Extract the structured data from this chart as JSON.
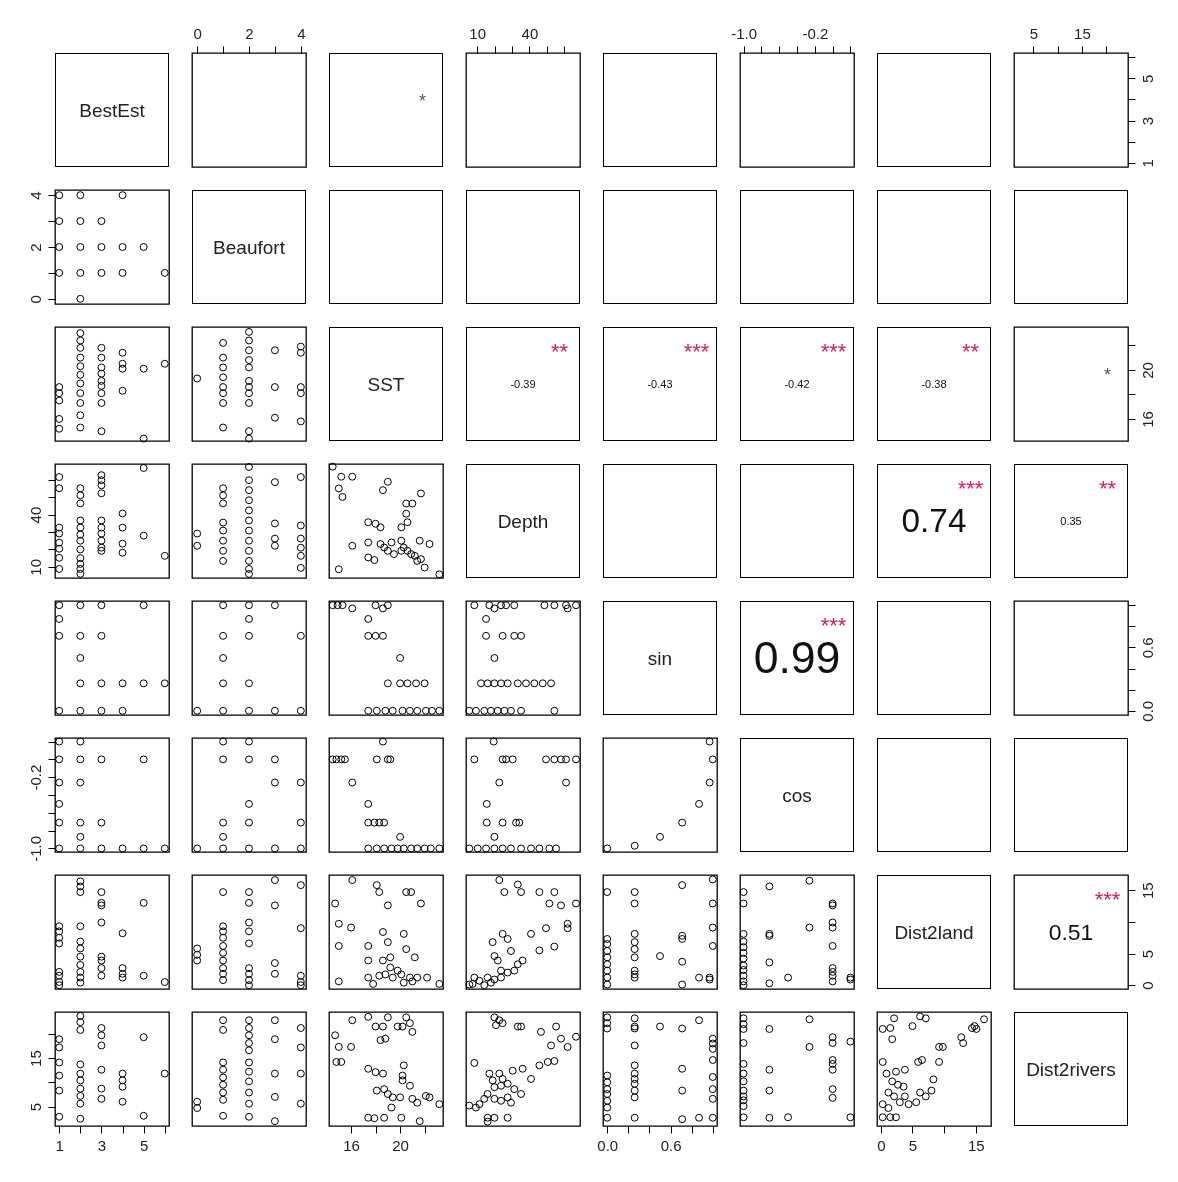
{
  "chart_data": [
    {
      "type": "other",
      "annotations": [
        "BestEst",
        "*",
        "Beaufort",
        "SST",
        "-0.39",
        "**",
        "-0.43",
        "***",
        "-0.42",
        "***",
        "-0.38",
        "**",
        "*",
        "Depth",
        "0.74",
        "***",
        "0.35",
        "**",
        "sin",
        "0.99",
        "***",
        "cos",
        "Dist2land",
        "0.51",
        "***",
        "Dist2rivers"
      ]
    },
    {
      "type": "scatter",
      "xlim": [
        -0.2,
        4.2
      ],
      "xticks": [
        0,
        {
          "value": 1,
          "label": null
        },
        2,
        {
          "value": 3,
          "label": null
        },
        4
      ],
      "ylim": [
        0.8,
        6.2
      ],
      "tick_labels": "x"
    },
    {
      "type": "scatter",
      "xlim": [
        3.6,
        69
      ],
      "xticks": [
        10,
        {
          "value": 20,
          "label": null
        },
        {
          "value": 30,
          "label": null
        },
        40,
        {
          "value": 50,
          "label": null
        },
        {
          "value": 60,
          "label": null
        }
      ],
      "ylim": [
        0.8,
        6.2
      ],
      "tick_labels": "x"
    },
    {
      "type": "scatter",
      "xlim": [
        -1.04,
        0.24
      ],
      "xticks": [
        {
          "value": -1,
          "label": "-1.0"
        },
        {
          "value": -0.8,
          "label": null
        },
        {
          "value": -0.6,
          "label": null
        },
        {
          "value": -0.4,
          "label": null
        },
        {
          "value": -0.2,
          "label": "-0.2"
        },
        {
          "value": 0,
          "label": null
        },
        {
          "value": 0.2,
          "label": null
        }
      ],
      "ylim": [
        0.8,
        6.2
      ],
      "tick_labels": "x"
    },
    {
      "type": "scatter",
      "xlim": [
        1,
        24.5
      ],
      "xticks": [
        5,
        {
          "value": 10,
          "label": null
        },
        15,
        {
          "value": 20,
          "label": null
        }
      ],
      "ylim": [
        0.8,
        6.2
      ],
      "yticks": [
        1,
        {
          "value": 2,
          "label": null
        },
        3,
        {
          "value": 4,
          "label": null
        },
        5,
        {
          "value": 6,
          "label": null
        }
      ]
    },
    {
      "type": "scatter",
      "marker": "circle",
      "color": "#000000",
      "xlim": [
        0.8,
        6.2
      ],
      "ylim": [
        -0.2,
        4.2
      ],
      "yticks": [
        0,
        {
          "value": 1,
          "label": null
        },
        2,
        {
          "value": 3,
          "label": null
        },
        4
      ],
      "tick_labels": "y",
      "x": [
        1,
        2,
        4,
        1,
        2,
        3,
        1,
        2,
        3,
        4,
        5,
        1,
        2,
        3,
        4,
        6,
        2
      ],
      "values": [
        4,
        4,
        4,
        3,
        3,
        3,
        2,
        2,
        2,
        2,
        2,
        1,
        1,
        1,
        1,
        1,
        0
      ]
    },
    {
      "type": "scatter",
      "marker": "circle",
      "color": "#000000",
      "xlim": [
        0.8,
        6.2
      ],
      "ylim": [
        14.2,
        23.5
      ],
      "tick_labels": false,
      "x": [
        1,
        1,
        1,
        1,
        1,
        2,
        2,
        2,
        2,
        2,
        2,
        2,
        2,
        2,
        2,
        2,
        3,
        3,
        3,
        3,
        3,
        3,
        3,
        3,
        3,
        4,
        4,
        4,
        4,
        5,
        5,
        6
      ],
      "values": [
        18.6,
        18.1,
        17.5,
        16.0,
        15.2,
        23.0,
        22.4,
        21.8,
        21.0,
        20.3,
        19.6,
        18.9,
        18.1,
        17.3,
        16.3,
        15.3,
        21.8,
        21.0,
        20.2,
        19.7,
        19.1,
        18.7,
        18.1,
        17.3,
        15.0,
        21.4,
        20.5,
        20.1,
        18.3,
        20.1,
        14.4,
        20.5
      ]
    },
    {
      "type": "scatter",
      "marker": "circle",
      "color": "#000000",
      "xlim": [
        -0.2,
        4.2
      ],
      "ylim": [
        14.2,
        23.5
      ],
      "tick_labels": false,
      "x": [
        0,
        1,
        1,
        1,
        1,
        1,
        1,
        1,
        1,
        2,
        2,
        2,
        2,
        2,
        2,
        2,
        2,
        2,
        2,
        2,
        3,
        3,
        3,
        4,
        4,
        4,
        4,
        4
      ],
      "values": [
        19.3,
        22.2,
        21.0,
        20.2,
        19.4,
        18.6,
        18.1,
        17.3,
        15.3,
        23.1,
        22.4,
        21.6,
        20.8,
        20.2,
        19.1,
        18.6,
        18.1,
        17.3,
        15.0,
        14.4,
        21.6,
        18.6,
        16.1,
        21.9,
        21.4,
        18.6,
        18.1,
        15.8
      ]
    },
    {
      "type": "scatter",
      "xlim": [
        1,
        24.5
      ],
      "ylim": [
        14.2,
        23.5
      ],
      "yticks": [
        16,
        {
          "value": 18,
          "label": null
        },
        20,
        {
          "value": 22,
          "label": null
        }
      ],
      "tick_labels": "y"
    },
    {
      "type": "scatter",
      "marker": "circle",
      "color": "#000000",
      "xlim": [
        0.8,
        6.2
      ],
      "ylim": [
        3.6,
        69
      ],
      "yticks": [
        10,
        {
          "value": 20,
          "label": null
        },
        {
          "value": 30,
          "label": null
        },
        40,
        {
          "value": 50,
          "label": null
        },
        {
          "value": 60,
          "label": null
        }
      ],
      "tick_labels": "y",
      "x": [
        1,
        1,
        1,
        1,
        1,
        1,
        1,
        1,
        2,
        2,
        2,
        2,
        2,
        2,
        2,
        2,
        2,
        2,
        2,
        2,
        3,
        3,
        3,
        3,
        3,
        3,
        3,
        3,
        3,
        3,
        4,
        4,
        4,
        4,
        5,
        5,
        6
      ],
      "values": [
        61.5,
        55.1,
        32.5,
        29.1,
        23.9,
        20.4,
        15.2,
        8.8,
        55.1,
        51.0,
        46.4,
        36.6,
        32.5,
        28.5,
        25.0,
        20.0,
        15.0,
        11.7,
        8.8,
        6.0,
        62.6,
        59.7,
        56.8,
        52.2,
        36.6,
        32.5,
        29.1,
        25.0,
        21.0,
        19.2,
        40.6,
        32.5,
        23.3,
        18.1,
        66.7,
        27.9,
        16.3
      ]
    },
    {
      "type": "scatter",
      "marker": "circle",
      "color": "#000000",
      "xlim": [
        -0.2,
        4.2
      ],
      "ylim": [
        3.6,
        69
      ],
      "tick_labels": false,
      "x": [
        0,
        0,
        1,
        1,
        1,
        1,
        1,
        1,
        1,
        1,
        2,
        2,
        2,
        2,
        2,
        2,
        2,
        2,
        2,
        2,
        2,
        2,
        3,
        3,
        3,
        3,
        4,
        4,
        4,
        4,
        4,
        4
      ],
      "values": [
        29.1,
        22.1,
        55.1,
        51.0,
        46.4,
        35.4,
        30.8,
        25.0,
        19.2,
        13.4,
        67.3,
        59.7,
        54.0,
        48.2,
        42.4,
        36.6,
        30.8,
        25.0,
        19.2,
        13.4,
        8.8,
        5.9,
        58.6,
        34.9,
        26.2,
        22.1,
        61.5,
        33.7,
        26.2,
        21.0,
        16.3,
        9.4
      ]
    },
    {
      "type": "scatter",
      "marker": "circle",
      "color": "#000000",
      "xlim": [
        14.2,
        23.5
      ],
      "ylim": [
        3.6,
        69
      ],
      "tick_labels": false,
      "x": [
        14.5,
        15.2,
        16.1,
        15.0,
        15.3,
        18.6,
        19.0,
        21.7,
        20.5,
        21.0,
        20.5,
        20.6,
        17.4,
        18.0,
        18.4,
        20.1,
        17.4,
        16.1,
        18.4,
        18.7,
        19.0,
        19.3,
        20.1,
        20.3,
        20.6,
        20.9,
        21.2,
        21.6,
        22.4,
        19.5,
        20.1,
        17.4,
        17.9,
        21.4,
        22.0,
        15.0,
        23.2,
        21.7
      ],
      "values": [
        67.5,
        61.7,
        61.7,
        55.0,
        50.1,
        54.0,
        58.8,
        52.1,
        46.3,
        46.3,
        40.5,
        35.6,
        35.6,
        34.7,
        32.7,
        32.7,
        24.0,
        22.1,
        23.1,
        21.1,
        19.2,
        24.0,
        25.0,
        21.1,
        19.2,
        17.3,
        16.3,
        25.0,
        23.1,
        17.3,
        19.2,
        15.4,
        13.9,
        13.4,
        9.6,
        8.6,
        5.7,
        14.4
      ]
    },
    {
      "type": "scatter",
      "marker": "circle",
      "color": "#000000",
      "xlim": [
        0.8,
        6.2
      ],
      "ylim": [
        -0.04,
        1.04
      ],
      "tick_labels": false,
      "x": [
        1,
        1,
        1,
        1,
        2,
        2,
        2,
        2,
        2,
        3,
        3,
        3,
        3,
        4,
        4,
        5,
        5,
        6
      ],
      "values": [
        1,
        0.87,
        0.71,
        0,
        1,
        0.71,
        0.5,
        0.26,
        0,
        1,
        0.71,
        0.26,
        0,
        0.26,
        0,
        1,
        0.26,
        0.26
      ]
    },
    {
      "type": "scatter",
      "marker": "circle",
      "color": "#000000",
      "xlim": [
        -0.2,
        4.2
      ],
      "ylim": [
        -0.04,
        1.04
      ],
      "tick_labels": false,
      "x": [
        0,
        1,
        1,
        1,
        1,
        1,
        2,
        2,
        2,
        2,
        2,
        3,
        3,
        4,
        4
      ],
      "values": [
        0,
        1,
        0.71,
        0.5,
        0.26,
        0,
        1,
        0.87,
        0.71,
        0.26,
        0,
        1,
        0,
        0.71,
        0
      ]
    },
    {
      "type": "scatter",
      "marker": "circle",
      "color": "#000000",
      "xlim": [
        14.2,
        23.5
      ],
      "ylim": [
        -0.04,
        1.04
      ],
      "tick_labels": false,
      "x": [
        14.5,
        14.9,
        15.3,
        16.1,
        18.0,
        18.6,
        19.0,
        17.4,
        17.4,
        18.0,
        18.6,
        20.0,
        19.0,
        20.0,
        20.6,
        21.3,
        22.0,
        17.4,
        18.1,
        18.8,
        19.4,
        20.2,
        20.8,
        21.4,
        22.1,
        22.6,
        23.2
      ],
      "values": [
        1,
        1,
        1,
        0.97,
        1,
        0.97,
        1,
        0.87,
        0.71,
        0.71,
        0.71,
        0.5,
        0.26,
        0.26,
        0.26,
        0.26,
        0.26,
        0,
        0,
        0,
        0,
        0,
        0,
        0,
        0,
        0,
        0
      ]
    },
    {
      "type": "scatter",
      "marker": "circle",
      "color": "#000000",
      "xlim": [
        3.6,
        69
      ],
      "ylim": [
        -0.04,
        1.04
      ],
      "tick_labels": false,
      "x": [
        8.4,
        17.0,
        19.9,
        23.7,
        26.6,
        31.3,
        48.6,
        54.3,
        61.0,
        61.9,
        66.7,
        15.1,
        15.1,
        24.6,
        31.3,
        35.2,
        19.9,
        12.2,
        16.0,
        19.9,
        23.7,
        27.5,
        33.3,
        38.0,
        42.8,
        47.6,
        52.4,
        5.5,
        9.3,
        14.1,
        17.9,
        21.8,
        25.6,
        29.4,
        35.2,
        54.3
      ],
      "values": [
        1,
        1,
        0.97,
        1,
        1,
        1,
        1,
        1,
        1,
        0.97,
        1,
        0.87,
        0.71,
        0.71,
        0.71,
        0.71,
        0.5,
        0.26,
        0.26,
        0.26,
        0.26,
        0.26,
        0.26,
        0.26,
        0.26,
        0.26,
        0.26,
        0,
        0,
        0,
        0,
        0,
        0,
        0,
        0,
        0
      ]
    },
    {
      "type": "scatter",
      "xlim": [
        1,
        24.5
      ],
      "tick_labels": "y",
      "ylim": [
        -0.04,
        1.04
      ],
      "yticks": [
        {
          "value": 0,
          "label": "0.0"
        },
        {
          "value": 0.2,
          "label": null
        },
        {
          "value": 0.4,
          "label": null
        },
        {
          "value": 0.6,
          "label": "0.6"
        },
        {
          "value": 0.8,
          "label": null
        },
        {
          "value": 1,
          "label": null
        }
      ]
    },
    {
      "type": "scatter",
      "marker": "circle",
      "color": "#000000",
      "xlim": [
        0.8,
        6.2
      ],
      "ylim": [
        -1.04,
        0.24
      ],
      "yticks": [
        {
          "value": -1,
          "label": "-1.0"
        },
        {
          "value": -0.8,
          "label": null
        },
        {
          "value": -0.6,
          "label": null
        },
        {
          "value": -0.4,
          "label": null
        },
        {
          "value": -0.2,
          "label": "-0.2"
        },
        {
          "value": 0,
          "label": null
        },
        {
          "value": 0.2,
          "label": null
        }
      ],
      "tick_labels": "y",
      "x": [
        1,
        1,
        1,
        1,
        1,
        1,
        2,
        2,
        2,
        2,
        2,
        2,
        3,
        3,
        3,
        4,
        5,
        5,
        6
      ],
      "values": [
        0.2,
        0,
        -0.26,
        -0.5,
        -0.71,
        -1,
        0.2,
        0,
        -0.26,
        -0.71,
        -0.87,
        -1,
        0,
        -0.71,
        -1,
        -1,
        0,
        -1,
        -1
      ]
    },
    {
      "type": "scatter",
      "marker": "circle",
      "color": "#000000",
      "xlim": [
        -0.2,
        4.2
      ],
      "ylim": [
        -1.04,
        0.24
      ],
      "tick_labels": false,
      "x": [
        0,
        1,
        1,
        1,
        1,
        1,
        2,
        2,
        2,
        2,
        2,
        3,
        3,
        3,
        4,
        4,
        4
      ],
      "values": [
        -1,
        0.2,
        0,
        -0.71,
        -0.87,
        -1,
        0.2,
        0,
        -0.5,
        -0.71,
        -1,
        0,
        -0.26,
        -1,
        -0.26,
        -0.71,
        -1
      ]
    },
    {
      "type": "scatter",
      "marker": "circle",
      "color": "#000000",
      "xlim": [
        14.2,
        23.5
      ],
      "ylim": [
        -1.04,
        0.24
      ],
      "tick_labels": false,
      "x": [
        18.6,
        14.5,
        14.8,
        15.2,
        15.5,
        18.1,
        19.0,
        19.2,
        16.1,
        17.4,
        17.4,
        17.9,
        18.3,
        18.7,
        20.0,
        17.4,
        18.1,
        18.7,
        19.3,
        19.8,
        20.3,
        20.9,
        21.4,
        22.0,
        22.5,
        23.2
      ],
      "values": [
        0.2,
        0,
        0,
        0,
        0,
        0,
        0,
        0,
        -0.26,
        -0.5,
        -0.71,
        -0.71,
        -0.71,
        -0.71,
        -0.87,
        -1,
        -1,
        -1,
        -1,
        -1,
        -1,
        -1,
        -1,
        -1,
        -1,
        -1
      ]
    },
    {
      "type": "scatter",
      "marker": "circle",
      "color": "#000000",
      "xlim": [
        3.6,
        69
      ],
      "ylim": [
        -1.04,
        0.24
      ],
      "tick_labels": false,
      "x": [
        19.5,
        8.4,
        24.6,
        26.6,
        30.4,
        49.5,
        54.3,
        58.1,
        61.0,
        66.7,
        22.7,
        61.0,
        15.5,
        15.5,
        24.6,
        32.3,
        34.2,
        19.9,
        5.5,
        10.3,
        15.1,
        19.9,
        24.6,
        29.4,
        35.2,
        40.9,
        45.7,
        51.4,
        55.3
      ],
      "values": [
        0.2,
        0,
        0,
        0,
        0,
        0,
        0,
        0,
        0,
        0,
        -0.26,
        -0.26,
        -0.5,
        -0.71,
        -0.71,
        -0.71,
        -0.71,
        -0.87,
        -1,
        -1,
        -1,
        -1,
        -1,
        -1,
        -1,
        -1,
        -1,
        -1,
        -1
      ]
    },
    {
      "type": "scatter",
      "marker": "circle",
      "color": "#000000",
      "xlim": [
        -0.04,
        1.04
      ],
      "ylim": [
        -1.04,
        0.24
      ],
      "tick_labels": false,
      "x": [
        0,
        0.26,
        0.5,
        0.71,
        0.87,
        0.97,
        1,
        0.97
      ],
      "values": [
        -1,
        -0.97,
        -0.87,
        -0.71,
        -0.5,
        -0.26,
        0,
        0.2
      ]
    },
    {
      "type": "scatter",
      "marker": "circle",
      "color": "#000000",
      "xlim": [
        0.8,
        6.2
      ],
      "ylim": [
        -0.6,
        17.4
      ],
      "tick_labels": false,
      "x": [
        1,
        1,
        1,
        1,
        1,
        1,
        1,
        1,
        2,
        2,
        2,
        2,
        2,
        2,
        2,
        2,
        2,
        2,
        2,
        3,
        3,
        3,
        3,
        3,
        3,
        3,
        3,
        4,
        4,
        4,
        4,
        5,
        5,
        6
      ],
      "values": [
        9.3,
        8.5,
        7.5,
        6.6,
        2.1,
        1.5,
        0.5,
        0,
        16.4,
        15.6,
        14.7,
        9.3,
        6.9,
        5.8,
        4.5,
        3.2,
        2.1,
        1.2,
        0.4,
        14.7,
        13.0,
        12.6,
        9.9,
        4.5,
        3.9,
        2.7,
        1.5,
        8.2,
        2.7,
        1.8,
        1.2,
        13.0,
        1.5,
        0.5
      ]
    },
    {
      "type": "scatter",
      "marker": "circle",
      "color": "#000000",
      "xlim": [
        -0.2,
        4.2
      ],
      "ylim": [
        -0.6,
        17.4
      ],
      "tick_labels": false,
      "x": [
        0,
        0,
        0,
        1,
        1,
        1,
        1,
        1,
        1,
        1,
        1,
        1,
        1,
        2,
        2,
        2,
        2,
        2,
        2,
        2,
        2,
        2,
        3,
        3,
        3,
        3,
        4,
        4,
        4,
        4,
        4
      ],
      "values": [
        5.8,
        4.8,
        3.9,
        14.7,
        9.3,
        8.5,
        7.5,
        6.2,
        5.1,
        3.9,
        2.7,
        1.8,
        0.8,
        14.7,
        13.0,
        9.9,
        8.5,
        6.6,
        2.7,
        1.8,
        0.8,
        0,
        16.6,
        12.6,
        3.5,
        1.8,
        15.8,
        9.0,
        1.5,
        0.5,
        0
      ]
    },
    {
      "type": "scatter",
      "marker": "circle",
      "color": "#000000",
      "xlim": [
        14.2,
        23.5
      ],
      "ylim": [
        -0.6,
        17.4
      ],
      "tick_labels": false,
      "x": [
        16.1,
        18.1,
        18.3,
        20.5,
        20.9,
        19.0,
        21.7,
        14.7,
        15.0,
        16.0,
        15.0,
        17.4,
        18.6,
        19.0,
        20.3,
        17.4,
        18.6,
        19.2,
        20.5,
        21.2,
        17.4,
        18.3,
        18.8,
        19.4,
        20.1,
        20.8,
        21.4,
        22.2,
        15.0,
        17.8,
        20.3,
        21.0,
        23.2,
        19.2,
        19.8
      ],
      "values": [
        16.6,
        15.8,
        14.7,
        14.7,
        14.7,
        12.6,
        12.9,
        12.9,
        9.7,
        9.1,
        6.2,
        6.2,
        8.4,
        6.8,
        8.1,
        3.9,
        3.9,
        4.4,
        5.7,
        4.4,
        1.2,
        1.5,
        1.7,
        1.2,
        1.7,
        1.2,
        1.2,
        1.2,
        0.6,
        0.2,
        0.4,
        0.6,
        0.2,
        2.8,
        2.3
      ]
    },
    {
      "type": "scatter",
      "marker": "circle",
      "color": "#000000",
      "xlim": [
        3.6,
        69
      ],
      "ylim": [
        -0.6,
        17.4
      ],
      "tick_labels": false,
      "x": [
        22.7,
        25.6,
        33.3,
        35.2,
        45.7,
        54.3,
        51.4,
        58.1,
        66.7,
        24.6,
        40.9,
        49.5,
        61.9,
        61.9,
        18.9,
        27.5,
        29.4,
        45.7,
        54.3,
        19.9,
        21.8,
        36.1,
        33.3,
        23.7,
        27.5,
        31.3,
        16.0,
        19.9,
        11.3,
        7.4,
        5.5,
        14.1,
        17.9,
        8.4,
        23.7
      ],
      "values": [
        16.6,
        14.7,
        15.9,
        14.7,
        14.7,
        14.7,
        12.9,
        12.6,
        12.9,
        8.1,
        8.1,
        9.0,
        9.7,
        9.0,
        6.8,
        7.3,
        5.4,
        5.5,
        6.1,
        4.6,
        3.9,
        3.9,
        3.3,
        2.3,
        2.0,
        2.3,
        1.2,
        0.9,
        0.7,
        0.2,
        0.1,
        0,
        0.4,
        1.2,
        1.2
      ]
    },
    {
      "type": "scatter",
      "marker": "circle",
      "color": "#000000",
      "xlim": [
        -0.04,
        1.04
      ],
      "ylim": [
        -0.6,
        17.4
      ],
      "tick_labels": false,
      "x": [
        0,
        0,
        0,
        0,
        0,
        0,
        0,
        0,
        0,
        0.26,
        0.26,
        0.26,
        0.26,
        0.26,
        0.26,
        0.26,
        0.26,
        0.26,
        0.5,
        0.71,
        0.71,
        0.71,
        0.71,
        0.71,
        0.87,
        1,
        1,
        1,
        1,
        0.97,
        0.97
      ],
      "values": [
        14.7,
        7.3,
        6.5,
        5.4,
        4.4,
        3.3,
        2.3,
        1.2,
        0.1,
        14.7,
        12.9,
        8.1,
        6.8,
        5.7,
        4.4,
        2.3,
        1.7,
        1.2,
        4.6,
        15.8,
        7.8,
        7.3,
        3.7,
        0.1,
        1.2,
        16.7,
        12.9,
        9.1,
        6.2,
        1.2,
        0.9
      ]
    },
    {
      "type": "scatter",
      "marker": "circle",
      "color": "#000000",
      "xlim": [
        -1.04,
        0.24
      ],
      "ylim": [
        -0.6,
        17.4
      ],
      "tick_labels": false,
      "x": [
        -1,
        -1,
        -1,
        -1,
        -1,
        -1,
        -1,
        -1,
        -1,
        -1,
        -1,
        -1,
        -0.71,
        -0.71,
        -0.71,
        -0.71,
        -0.71,
        -0.5,
        -0.26,
        -0.26,
        0,
        0,
        0,
        0,
        0,
        0,
        0,
        0,
        0,
        0.2,
        0.2
      ],
      "values": [
        14.7,
        12.9,
        8.1,
        6.9,
        6.0,
        5.1,
        4.2,
        3.1,
        2.4,
        1.5,
        0.6,
        0,
        15.6,
        8.1,
        7.8,
        3.6,
        0.3,
        1.2,
        16.5,
        9.1,
        12.9,
        12.6,
        9.9,
        9.1,
        6.2,
        2.7,
        2.1,
        1.5,
        0.6,
        1.2,
        0.9
      ]
    },
    {
      "type": "scatter",
      "xlim": [
        1,
        24.5
      ],
      "ylim": [
        -0.6,
        17.4
      ],
      "yticks": [
        0,
        5,
        {
          "value": 10,
          "label": null
        },
        15
      ],
      "tick_labels": "y"
    },
    {
      "type": "scatter",
      "marker": "circle",
      "color": "#000000",
      "xlim": [
        0.8,
        6.2
      ],
      "ylim": [
        1,
        24.5
      ],
      "xticks": [
        1,
        {
          "value": 2,
          "label": null
        },
        3,
        {
          "value": 4,
          "label": null
        },
        5,
        {
          "value": 6,
          "label": null
        }
      ],
      "yticks": [
        5,
        {
          "value": 10,
          "label": null
        },
        15,
        {
          "value": 20,
          "label": null
        }
      ],
      "x": [
        1,
        1,
        1,
        1,
        1,
        1,
        2,
        2,
        2,
        2,
        2,
        2,
        2,
        2,
        2,
        2,
        3,
        3,
        3,
        3,
        3,
        3,
        4,
        4,
        4,
        4,
        5,
        5,
        6
      ],
      "values": [
        18.9,
        17.2,
        14.1,
        11.4,
        8.3,
        2.9,
        23.7,
        22.4,
        20.8,
        13.7,
        11.8,
        10.4,
        8.7,
        7.2,
        5.6,
        2.5,
        21.2,
        19.7,
        17.6,
        12.6,
        8.7,
        6.6,
        11.8,
        10.4,
        9.1,
        6.0,
        19.3,
        3.1,
        11.8
      ]
    },
    {
      "type": "scatter",
      "marker": "circle",
      "color": "#000000",
      "xlim": [
        -0.2,
        4.2
      ],
      "ylim": [
        1,
        24.5
      ],
      "tick_labels": false,
      "x": [
        0,
        0,
        1,
        1,
        1,
        1,
        1,
        1,
        1,
        1,
        1,
        2,
        2,
        2,
        2,
        2,
        2,
        2,
        2,
        2,
        2,
        2,
        3,
        3,
        3,
        3,
        3,
        4,
        4,
        4,
        4
      ],
      "values": [
        6.0,
        4.7,
        22.8,
        20.8,
        14.1,
        12.6,
        11.0,
        9.5,
        7.9,
        6.4,
        3.1,
        22.8,
        21.2,
        19.7,
        18.1,
        16.6,
        14.1,
        12.2,
        10.2,
        7.9,
        5.6,
        2.9,
        22.8,
        18.9,
        11.8,
        7.0,
        2.0,
        21.2,
        17.2,
        11.8,
        5.6
      ]
    },
    {
      "type": "scatter",
      "marker": "circle",
      "color": "#000000",
      "xlim": [
        14.2,
        23.5
      ],
      "ylim": [
        1,
        24.5
      ],
      "xticks": [
        16,
        {
          "value": 18,
          "label": null
        },
        20,
        {
          "value": 22,
          "label": null
        }
      ],
      "tick_labels": "x",
      "x": [
        16.1,
        17.4,
        19.0,
        20.5,
        18.0,
        18.6,
        19.8,
        20.2,
        20.8,
        21.0,
        18.4,
        18.8,
        14.7,
        15.0,
        16.0,
        14.8,
        15.2,
        17.4,
        18.0,
        18.6,
        20.3,
        20.2,
        20.8,
        18.1,
        18.7,
        19.0,
        19.4,
        20.0,
        21.0,
        21.4,
        22.1,
        22.4,
        23.2,
        19.3,
        17.4,
        17.9,
        18.7,
        20.1,
        21.6,
        20.2
      ],
      "values": [
        22.8,
        23.5,
        23.4,
        23.4,
        21.5,
        21.5,
        21.5,
        21.5,
        22.2,
        20.4,
        18.7,
        19.0,
        19.7,
        17.3,
        17.3,
        14.2,
        14.2,
        12.8,
        12.1,
        11.8,
        13.5,
        10.4,
        9.3,
        8.3,
        8.6,
        7.6,
        6.9,
        6.9,
        6.6,
        5.8,
        7.2,
        6.9,
        5.5,
        4.8,
        2.7,
        2.6,
        2.7,
        2.7,
        2.0,
        11.4
      ]
    },
    {
      "type": "scatter",
      "marker": "circle",
      "color": "#000000",
      "xlim": [
        3.6,
        69
      ],
      "ylim": [
        1,
        24.5
      ],
      "tick_labels": false,
      "x": [
        19.9,
        22.7,
        20.8,
        24.6,
        33.3,
        35.2,
        46.6,
        55.3,
        52.4,
        58.1,
        61.9,
        66.7,
        45.7,
        50.5,
        54.3,
        30.4,
        36.1,
        40.9,
        8.4,
        17.0,
        22.7,
        24.6,
        19.9,
        23.7,
        27.5,
        31.3,
        35.2,
        16.0,
        11.3,
        14.1,
        19.9,
        23.7,
        27.5,
        29.4,
        5.5,
        9.3,
        16.0,
        19.9,
        27.5,
        16.0,
        18.9
      ],
      "values": [
        23.4,
        22.8,
        21.8,
        22.2,
        21.5,
        21.5,
        20.4,
        21.5,
        17.6,
        19.0,
        17.3,
        19.4,
        13.5,
        14.2,
        14.4,
        12.4,
        12.8,
        10.7,
        14.0,
        11.8,
        11.8,
        10.7,
        9.0,
        9.3,
        9.7,
        8.6,
        7.6,
        7.6,
        5.5,
        6.6,
        6.6,
        6.2,
        6.9,
        5.8,
        5.2,
        4.8,
        2.7,
        2.7,
        2.7,
        1.9,
        10.4
      ]
    },
    {
      "type": "scatter",
      "marker": "circle",
      "color": "#000000",
      "xlim": [
        -0.04,
        1.04
      ],
      "ylim": [
        1,
        24.5
      ],
      "xticks": [
        {
          "value": 0,
          "label": "0.0"
        },
        {
          "value": 0.2,
          "label": null
        },
        {
          "value": 0.4,
          "label": null
        },
        {
          "value": 0.6,
          "label": "0.6"
        },
        {
          "value": 0.8,
          "label": null
        },
        {
          "value": 1,
          "label": null
        }
      ],
      "tick_labels": "x",
      "x": [
        0,
        0,
        0,
        0,
        0,
        0,
        0,
        0,
        0,
        0,
        0.26,
        0.26,
        0.26,
        0.26,
        0.26,
        0.26,
        0.26,
        0.26,
        0.26,
        0.26,
        0.26,
        0.5,
        0.71,
        0.71,
        0.71,
        0.71,
        0.87,
        0.87,
        1,
        1,
        1,
        1,
        1,
        1,
        1,
        1
      ],
      "values": [
        23.4,
        22.2,
        21.1,
        11.4,
        10.0,
        8.6,
        7.6,
        6.2,
        4.8,
        2.7,
        23.2,
        21.5,
        21.1,
        17.6,
        13.5,
        11.8,
        10.7,
        9.7,
        8.3,
        6.9,
        2.7,
        21.5,
        21.1,
        12.8,
        8.3,
        2.4,
        22.8,
        2.7,
        19.0,
        18.0,
        16.9,
        14.6,
        11.1,
        8.6,
        6.6,
        2.7
      ]
    },
    {
      "type": "scatter",
      "marker": "circle",
      "color": "#000000",
      "xlim": [
        -1.04,
        0.24
      ],
      "ylim": [
        1,
        24.5
      ],
      "tick_labels": false,
      "x": [
        -1,
        -1,
        -1,
        -1,
        -1,
        -1,
        -1,
        -1,
        -1,
        -1,
        -1,
        -1,
        -0.71,
        -0.71,
        -0.71,
        -0.71,
        -0.5,
        -0.26,
        -0.26,
        0,
        0,
        0,
        0,
        0,
        0,
        0,
        0.2,
        0.2
      ],
      "values": [
        23.2,
        22.0,
        21.0,
        18.1,
        13.8,
        11.8,
        10.2,
        8.3,
        7.1,
        6.3,
        5.1,
        2.8,
        21.0,
        12.6,
        8.3,
        2.7,
        2.8,
        23.0,
        17.3,
        19.3,
        18.1,
        14.6,
        13.8,
        12.6,
        8.6,
        6.8,
        18.4,
        2.8
      ]
    },
    {
      "type": "scatter",
      "marker": "circle",
      "color": "#000000",
      "xlim": [
        -0.6,
        17.4
      ],
      "ylim": [
        1,
        24.5
      ],
      "xticks": [
        0,
        5,
        {
          "value": 10,
          "label": null
        },
        15
      ],
      "tick_labels": "x",
      "x": [
        2.1,
        1.5,
        0.3,
        1.8,
        5.0,
        6.2,
        7.1,
        12.7,
        13.0,
        14.4,
        15.1,
        14.8,
        16.3,
        9.2,
        9.8,
        5.9,
        6.5,
        9.2,
        0.3,
        0.9,
        2.4,
        3.8,
        8.3,
        1.8,
        2.7,
        3.6,
        1.2,
        2.1,
        3.8,
        6.2,
        7.1,
        8.0,
        4.4,
        5.6,
        0.3,
        1.2,
        0.3,
        1.5,
        2.4,
        3.0
      ],
      "values": [
        23.2,
        21.2,
        21.0,
        18.9,
        21.6,
        23.6,
        23.2,
        19.3,
        18.1,
        21.2,
        21.0,
        21.6,
        23.0,
        17.3,
        17.3,
        14.2,
        14.6,
        14.2,
        14.2,
        11.8,
        12.2,
        12.6,
        10.6,
        10.2,
        9.5,
        9.1,
        7.9,
        7.1,
        7.1,
        7.9,
        7.1,
        8.3,
        5.5,
        5.9,
        5.5,
        4.7,
        2.8,
        2.8,
        2.8,
        5.9
      ]
    }
  ]
}
